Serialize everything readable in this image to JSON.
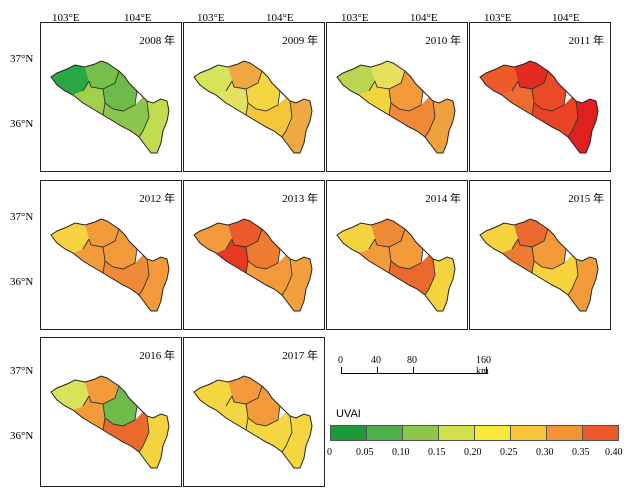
{
  "top_axis": [
    "103°E",
    "104°E"
  ],
  "left_axis": [
    "37°N",
    "36°N"
  ],
  "panels": [
    {
      "year": "2008 年",
      "fills": [
        "#2aa846",
        "#76c04a",
        "#a3d04a",
        "#6dbc4a",
        "#8bc64c",
        "#c2dc52"
      ]
    },
    {
      "year": "2009 年",
      "fills": [
        "#d7e45a",
        "#f0a840",
        "#e4e060",
        "#f5d540",
        "#f6c63a",
        "#f0a840"
      ]
    },
    {
      "year": "2010 年",
      "fills": [
        "#b8d652",
        "#e8e05a",
        "#f5d33e",
        "#f39a3a",
        "#ee8a36",
        "#f0a03c"
      ]
    },
    {
      "year": "2011 年",
      "fills": [
        "#ee5a2a",
        "#e42a20",
        "#ef6a2e",
        "#ea4a28",
        "#ea4426",
        "#e02020"
      ]
    },
    {
      "year": "2012 年",
      "fills": [
        "#f5d33e",
        "#f39a3a",
        "#f39a3a",
        "#f39a3a",
        "#ef8a36",
        "#f39a3a"
      ]
    },
    {
      "year": "2013 年",
      "fills": [
        "#f39a3a",
        "#ea5a2a",
        "#e43a22",
        "#ef7a32",
        "#f39a3a",
        "#f2a03c"
      ]
    },
    {
      "year": "2014 年",
      "fills": [
        "#f5d33e",
        "#ef8a36",
        "#f39a3a",
        "#f39a3a",
        "#ea6a2e",
        "#f5d33e"
      ]
    },
    {
      "year": "2015 年",
      "fills": [
        "#f5d33e",
        "#ea6a2e",
        "#ef7a32",
        "#f39a3a",
        "#f5d33e",
        "#f39a3a"
      ]
    },
    {
      "year": "2016 年",
      "fills": [
        "#d7e45a",
        "#f39a3a",
        "#f39a3a",
        "#6dbc4a",
        "#ea6a2e",
        "#f5d33e"
      ]
    },
    {
      "year": "2017 年",
      "fills": [
        "#f5d540",
        "#f39a3a",
        "#f5d540",
        "#f39a3a",
        "#f5d540",
        "#f5d540"
      ]
    }
  ],
  "scale": {
    "labels": [
      "0",
      "40",
      "80",
      "160 km"
    ]
  },
  "legend": {
    "title": "UVAI",
    "colors": [
      "#1a9a38",
      "#4cb04a",
      "#8ec64a",
      "#d2e04a",
      "#f8e838",
      "#f9c43a",
      "#f39432",
      "#ec5a2a",
      "#e42222"
    ],
    "ticks": [
      "0",
      "0.05",
      "0.10",
      "0.15",
      "0.20",
      "0.25",
      "0.30",
      "0.35",
      "0.40"
    ]
  }
}
